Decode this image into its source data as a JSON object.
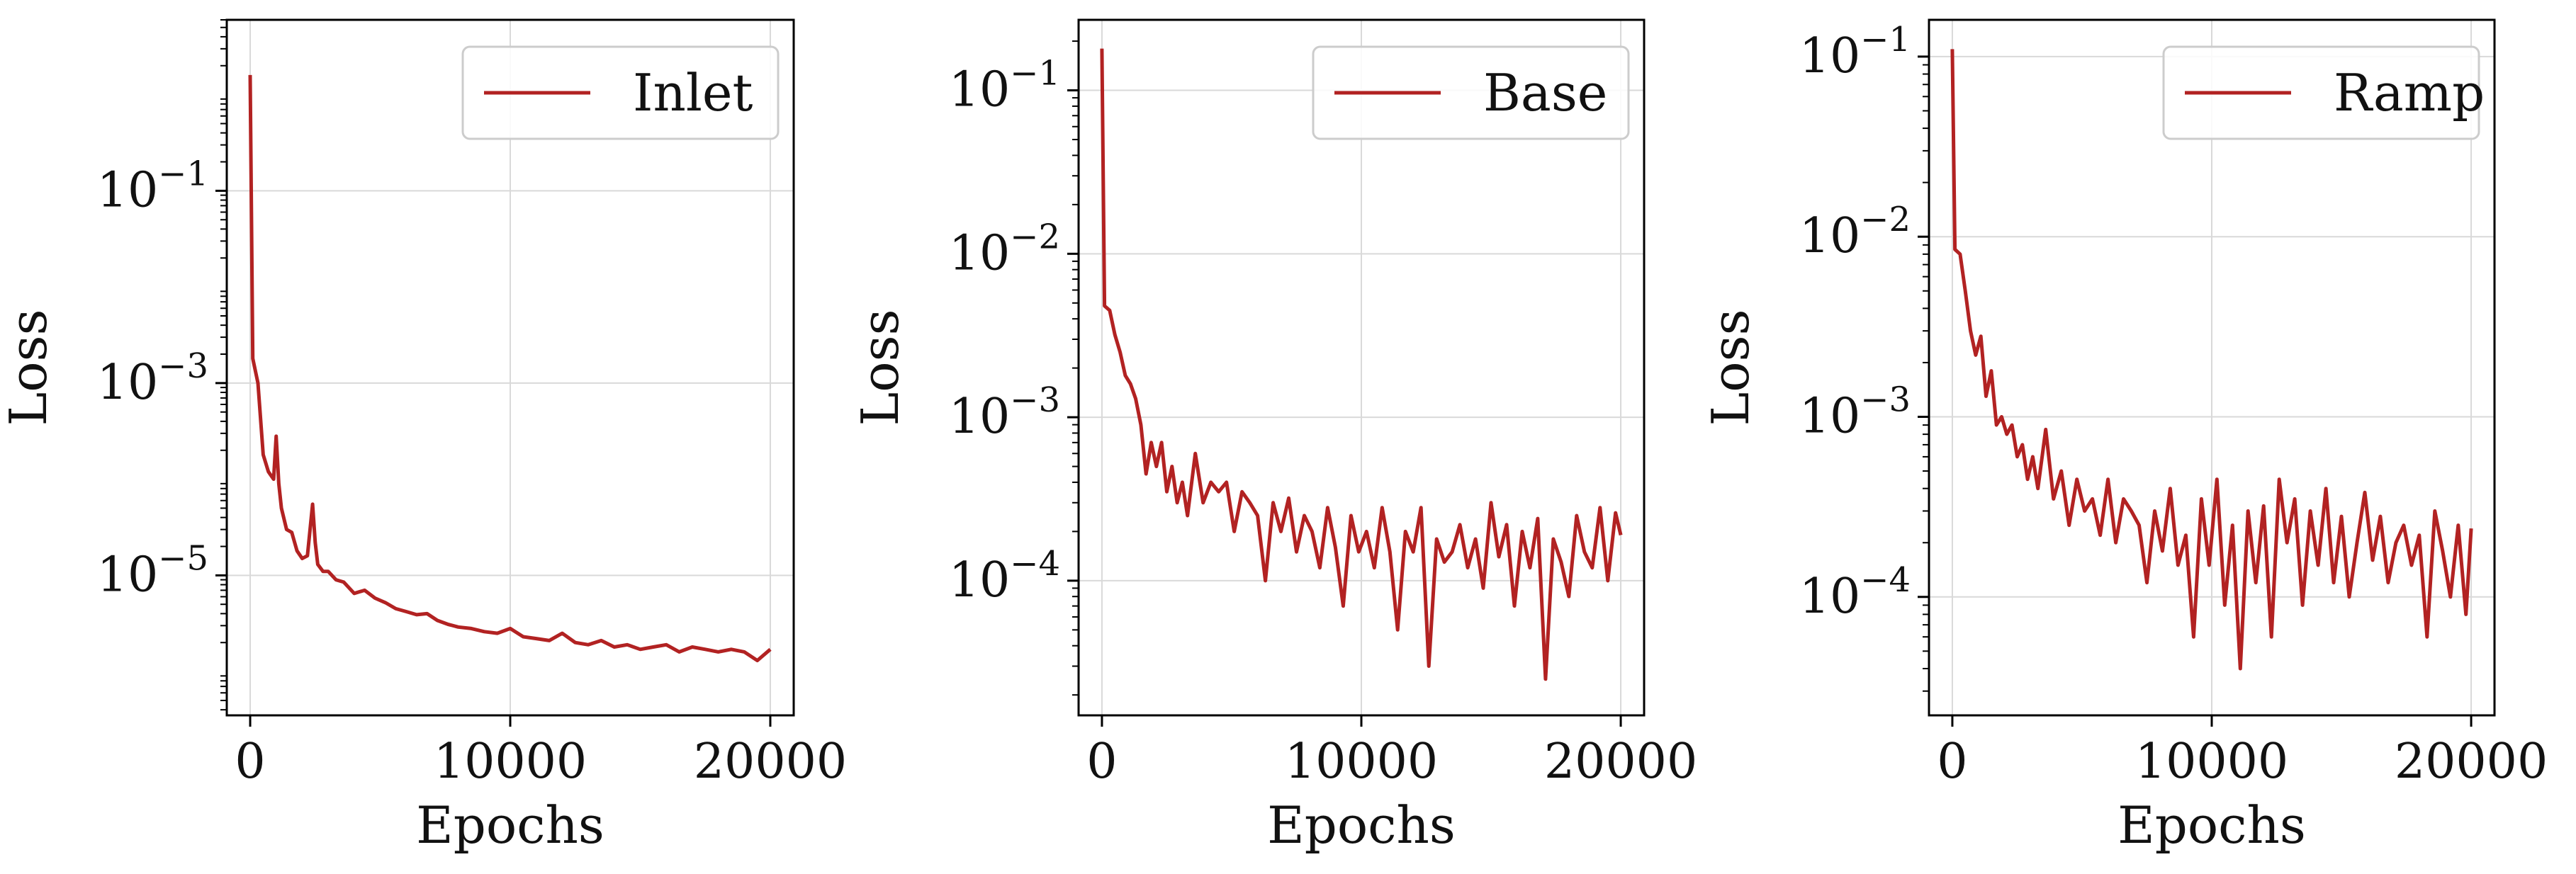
{
  "chart_data": [
    {
      "type": "line",
      "xlabel": "Epochs",
      "ylabel": "Loss",
      "yscale": "log",
      "xlim": [
        -900,
        20900
      ],
      "ylim": [
        3.5e-07,
        6.0
      ],
      "x_ticks": [
        0,
        10000,
        20000
      ],
      "x_tick_labels": [
        "0",
        "10000",
        "20000"
      ],
      "y_ticks": [
        0.1,
        0.001,
        1e-05
      ],
      "y_tick_labels": [
        {
          "base": "10",
          "exp": "−1"
        },
        {
          "base": "10",
          "exp": "−3"
        },
        {
          "base": "10",
          "exp": "−5"
        }
      ],
      "grid": true,
      "legend_position": "top-right",
      "series": [
        {
          "name": "Inlet",
          "color": "#b22222",
          "x": [
            0,
            100,
            300,
            500,
            700,
            900,
            1000,
            1100,
            1200,
            1400,
            1600,
            1800,
            2000,
            2200,
            2400,
            2500,
            2600,
            2800,
            3000,
            3300,
            3600,
            4000,
            4400,
            4800,
            5200,
            5600,
            6000,
            6400,
            6800,
            7200,
            7600,
            8000,
            8500,
            9000,
            9500,
            10000,
            10500,
            11000,
            11500,
            12000,
            12500,
            13000,
            13500,
            14000,
            14500,
            15000,
            15500,
            16000,
            16500,
            17000,
            17500,
            18000,
            18500,
            19000,
            19500,
            20000
          ],
          "y": [
            1.6,
            0.0018,
            0.001,
            0.00018,
            0.00012,
            0.0001,
            0.00028,
            9e-05,
            5e-05,
            3e-05,
            2.8e-05,
            1.8e-05,
            1.5e-05,
            1.6e-05,
            5.5e-05,
            2.2e-05,
            1.3e-05,
            1.1e-05,
            1.1e-05,
            9e-06,
            8.5e-06,
            6.5e-06,
            7e-06,
            5.8e-06,
            5.2e-06,
            4.5e-06,
            4.2e-06,
            3.9e-06,
            4e-06,
            3.4e-06,
            3.1e-06,
            2.9e-06,
            2.8e-06,
            2.6e-06,
            2.5e-06,
            2.8e-06,
            2.3e-06,
            2.2e-06,
            2.1e-06,
            2.5e-06,
            2e-06,
            1.9e-06,
            2.1e-06,
            1.8e-06,
            1.9e-06,
            1.7e-06,
            1.8e-06,
            1.9e-06,
            1.6e-06,
            1.8e-06,
            1.7e-06,
            1.6e-06,
            1.7e-06,
            1.6e-06,
            1.3e-06,
            1.7e-06
          ]
        }
      ]
    },
    {
      "type": "line",
      "xlabel": "Epochs",
      "ylabel": "Loss",
      "yscale": "log",
      "xlim": [
        -900,
        20900
      ],
      "ylim": [
        1.5e-05,
        0.27
      ],
      "x_ticks": [
        0,
        10000,
        20000
      ],
      "x_tick_labels": [
        "0",
        "10000",
        "20000"
      ],
      "y_ticks": [
        0.1,
        0.01,
        0.001,
        0.0001
      ],
      "y_tick_labels": [
        {
          "base": "10",
          "exp": "−1"
        },
        {
          "base": "10",
          "exp": "−2"
        },
        {
          "base": "10",
          "exp": "−3"
        },
        {
          "base": "10",
          "exp": "−4"
        }
      ],
      "grid": true,
      "legend_position": "top-right",
      "series": [
        {
          "name": "Base",
          "color": "#b22222",
          "x": [
            0,
            100,
            300,
            500,
            700,
            900,
            1100,
            1300,
            1500,
            1700,
            1900,
            2100,
            2300,
            2500,
            2700,
            2900,
            3100,
            3300,
            3600,
            3900,
            4200,
            4500,
            4800,
            5100,
            5400,
            5700,
            6000,
            6300,
            6600,
            6900,
            7200,
            7500,
            7800,
            8100,
            8400,
            8700,
            9000,
            9300,
            9600,
            9900,
            10200,
            10500,
            10800,
            11100,
            11400,
            11700,
            12000,
            12300,
            12600,
            12900,
            13200,
            13500,
            13800,
            14100,
            14400,
            14700,
            15000,
            15300,
            15600,
            15900,
            16200,
            16500,
            16800,
            17100,
            17400,
            17700,
            18000,
            18300,
            18600,
            18900,
            19200,
            19500,
            19800,
            20000
          ],
          "y": [
            0.18,
            0.0048,
            0.0045,
            0.0032,
            0.0025,
            0.0018,
            0.0016,
            0.0013,
            0.0009,
            0.00045,
            0.0007,
            0.0005,
            0.0007,
            0.00035,
            0.0005,
            0.0003,
            0.0004,
            0.00025,
            0.0006,
            0.0003,
            0.0004,
            0.00035,
            0.0004,
            0.0002,
            0.00035,
            0.0003,
            0.00025,
            0.0001,
            0.0003,
            0.0002,
            0.00032,
            0.00015,
            0.00025,
            0.0002,
            0.00012,
            0.00028,
            0.00016,
            7e-05,
            0.00025,
            0.00015,
            0.0002,
            0.00012,
            0.00028,
            0.00015,
            5e-05,
            0.0002,
            0.00015,
            0.00028,
            3e-05,
            0.00018,
            0.00013,
            0.00015,
            0.00022,
            0.00012,
            0.00018,
            9e-05,
            0.0003,
            0.00014,
            0.00022,
            7e-05,
            0.0002,
            0.00012,
            0.00024,
            2.5e-05,
            0.00018,
            0.00013,
            8e-05,
            0.00025,
            0.00015,
            0.00012,
            0.00028,
            0.0001,
            0.00026,
            0.00019
          ]
        }
      ]
    },
    {
      "type": "line",
      "xlabel": "Epochs",
      "ylabel": "Loss",
      "yscale": "log",
      "xlim": [
        -900,
        20900
      ],
      "ylim": [
        2.2e-05,
        0.16
      ],
      "x_ticks": [
        0,
        10000,
        20000
      ],
      "x_tick_labels": [
        "0",
        "10000",
        "20000"
      ],
      "y_ticks": [
        0.1,
        0.01,
        0.001,
        0.0001
      ],
      "y_tick_labels": [
        {
          "base": "10",
          "exp": "−1"
        },
        {
          "base": "10",
          "exp": "−2"
        },
        {
          "base": "10",
          "exp": "−3"
        },
        {
          "base": "10",
          "exp": "−4"
        }
      ],
      "grid": true,
      "legend_position": "top-right",
      "series": [
        {
          "name": "Ramp",
          "color": "#b22222",
          "x": [
            0,
            100,
            300,
            500,
            700,
            900,
            1100,
            1300,
            1500,
            1700,
            1900,
            2100,
            2300,
            2500,
            2700,
            2900,
            3100,
            3300,
            3600,
            3900,
            4200,
            4500,
            4800,
            5100,
            5400,
            5700,
            6000,
            6300,
            6600,
            6900,
            7200,
            7500,
            7800,
            8100,
            8400,
            8700,
            9000,
            9300,
            9600,
            9900,
            10200,
            10500,
            10800,
            11100,
            11400,
            11700,
            12000,
            12300,
            12600,
            12900,
            13200,
            13500,
            13800,
            14100,
            14400,
            14700,
            15000,
            15300,
            15600,
            15900,
            16200,
            16500,
            16800,
            17100,
            17400,
            17700,
            18000,
            18300,
            18600,
            18900,
            19200,
            19500,
            19800,
            20000
          ],
          "y": [
            0.11,
            0.0085,
            0.008,
            0.005,
            0.003,
            0.0022,
            0.0028,
            0.0013,
            0.0018,
            0.0009,
            0.001,
            0.0008,
            0.0009,
            0.0006,
            0.0007,
            0.00045,
            0.0006,
            0.0004,
            0.00085,
            0.00035,
            0.0005,
            0.00025,
            0.00045,
            0.0003,
            0.00035,
            0.00022,
            0.00045,
            0.0002,
            0.00035,
            0.0003,
            0.00025,
            0.00012,
            0.0003,
            0.00018,
            0.0004,
            0.00015,
            0.00022,
            6e-05,
            0.00035,
            0.00015,
            0.00045,
            9e-05,
            0.00025,
            4e-05,
            0.0003,
            0.00012,
            0.00032,
            6e-05,
            0.00045,
            0.0002,
            0.00035,
            9e-05,
            0.0003,
            0.00015,
            0.0004,
            0.00012,
            0.00028,
            0.0001,
            0.0002,
            0.00038,
            0.00016,
            0.00028,
            0.00012,
            0.0002,
            0.00025,
            0.00015,
            0.00022,
            6e-05,
            0.0003,
            0.00018,
            0.0001,
            0.00025,
            8e-05,
            0.00024
          ]
        }
      ]
    }
  ]
}
